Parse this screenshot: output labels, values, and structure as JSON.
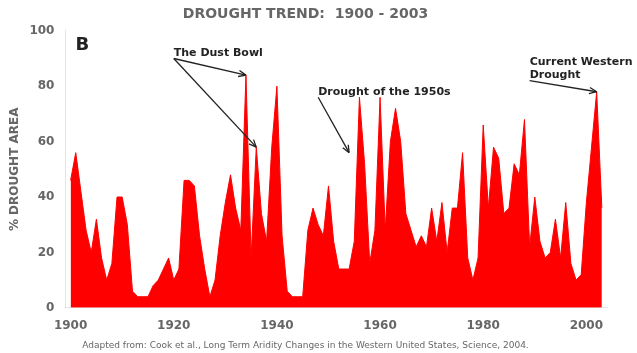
{
  "chart_data": {
    "type": "area",
    "title": "DROUGHT TREND:  1900 - 2003",
    "y_label": "% DROUGHT AREA",
    "caption": "Adapted from: Cook et al., Long Term Aridity Changes in the Western United States, Science, 2004.",
    "panel_label": "B",
    "color": "red",
    "grid": false,
    "legend": false,
    "xlim": [
      1899,
      2004
    ],
    "ylim": [
      0,
      100
    ],
    "xticks": [
      1900,
      1920,
      1940,
      1960,
      1980,
      2000
    ],
    "yticks": [
      0,
      20,
      40,
      60,
      80,
      100
    ],
    "x": [
      1900,
      1901,
      1902,
      1903,
      1904,
      1905,
      1906,
      1907,
      1908,
      1909,
      1910,
      1911,
      1912,
      1913,
      1914,
      1915,
      1916,
      1917,
      1918,
      1919,
      1920,
      1921,
      1922,
      1923,
      1924,
      1925,
      1926,
      1927,
      1928,
      1929,
      1930,
      1931,
      1932,
      1933,
      1934,
      1935,
      1936,
      1937,
      1938,
      1939,
      1940,
      1941,
      1942,
      1943,
      1944,
      1945,
      1946,
      1947,
      1948,
      1949,
      1950,
      1951,
      1952,
      1953,
      1954,
      1955,
      1956,
      1957,
      1958,
      1959,
      1960,
      1961,
      1962,
      1963,
      1964,
      1965,
      1966,
      1967,
      1968,
      1969,
      1970,
      1971,
      1972,
      1973,
      1974,
      1975,
      1976,
      1977,
      1978,
      1979,
      1980,
      1981,
      1982,
      1983,
      1984,
      1985,
      1986,
      1987,
      1988,
      1989,
      1990,
      1991,
      1992,
      1993,
      1994,
      1995,
      1996,
      1997,
      1998,
      1999,
      2000,
      2001,
      2002,
      2003
    ],
    "values": [
      46,
      56,
      42,
      28,
      20,
      32,
      18,
      10,
      16,
      40,
      40,
      30,
      6,
      4,
      4,
      4,
      8,
      10,
      14,
      18,
      10,
      14,
      46,
      46,
      44,
      26,
      14,
      4,
      10,
      26,
      38,
      48,
      36,
      28,
      84,
      18,
      58,
      34,
      24,
      58,
      80,
      26,
      6,
      4,
      4,
      4,
      28,
      36,
      30,
      26,
      44,
      24,
      14,
      14,
      14,
      24,
      76,
      52,
      16,
      28,
      76,
      28,
      60,
      72,
      60,
      34,
      28,
      22,
      26,
      22,
      36,
      24,
      38,
      20,
      36,
      36,
      56,
      18,
      10,
      18,
      66,
      36,
      58,
      54,
      34,
      36,
      52,
      48,
      68,
      22,
      40,
      24,
      18,
      20,
      32,
      18,
      38,
      16,
      10,
      12,
      38,
      58,
      78,
      36
    ],
    "annotations": [
      {
        "text": "The Dust Bowl",
        "x": 1920,
        "y": 90,
        "arrows": [
          {
            "x": 1934,
            "y": 84
          },
          {
            "x": 1936,
            "y": 58
          }
        ]
      },
      {
        "text": "Drought of the 1950s",
        "x": 1948,
        "y": 76,
        "arrows": [
          {
            "x": 1954,
            "y": 56
          }
        ]
      },
      {
        "text": "Current Western\nDrought",
        "x": 1989,
        "y": 82,
        "arrows": [
          {
            "x": 2002,
            "y": 78
          }
        ]
      }
    ]
  }
}
